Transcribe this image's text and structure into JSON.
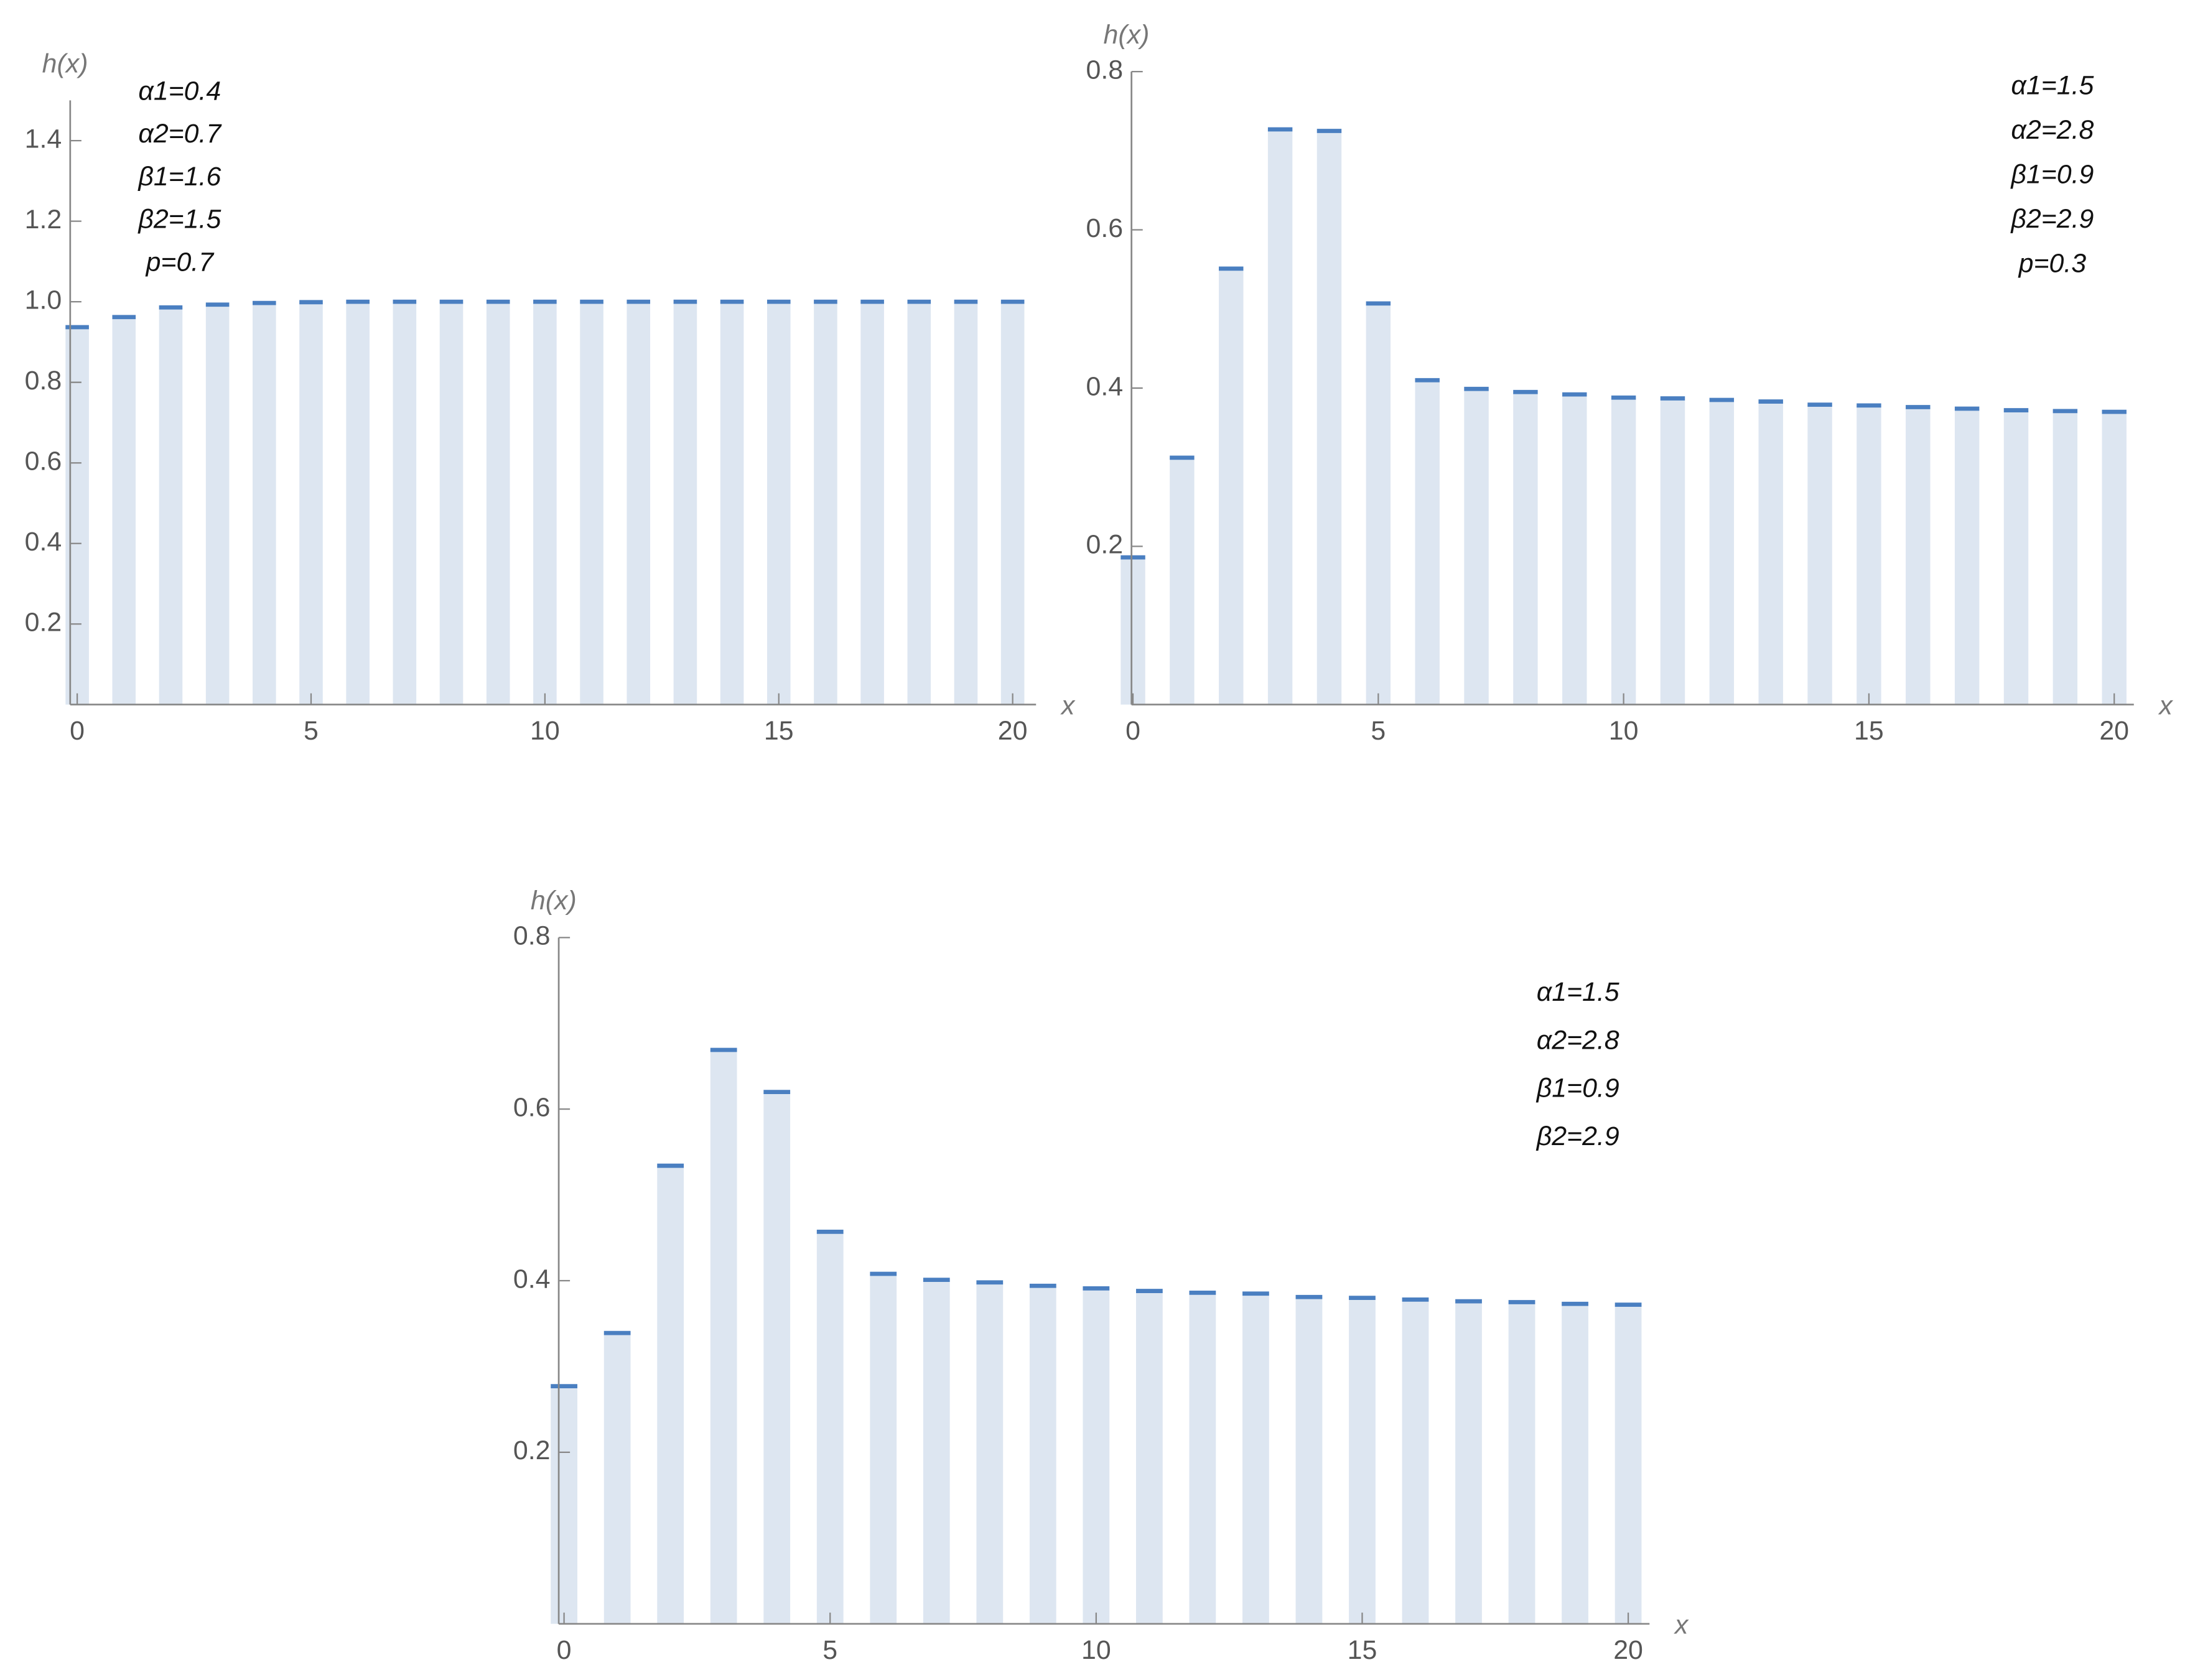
{
  "chart_data": [
    {
      "type": "bar",
      "x_label": "x",
      "y_label": "h(x)",
      "annotations": [
        "α1=0.4",
        "α2=0.7",
        "β1=1.6",
        "β2=1.5",
        "p=0.7"
      ],
      "x": [
        0,
        1,
        2,
        3,
        4,
        5,
        6,
        7,
        8,
        9,
        10,
        11,
        12,
        13,
        14,
        15,
        16,
        17,
        18,
        19,
        20
      ],
      "values": [
        0.937,
        0.962,
        0.986,
        0.993,
        0.997,
        0.999,
        1,
        1,
        1,
        1,
        1,
        1,
        1,
        1,
        1,
        1,
        1,
        1,
        1,
        1,
        1
      ],
      "color": "#4a7fc1",
      "bar_color": "#dde6f1",
      "xlim": [
        -0.15,
        20.5
      ],
      "xticks": [
        0,
        5,
        10,
        15,
        20
      ],
      "ylim": [
        0,
        1.5
      ],
      "yticks": [
        0.2,
        0.4,
        0.6,
        0.8,
        {
          "value": 1,
          "label": "1.0"
        },
        1.2,
        1.4
      ]
    },
    {
      "type": "bar",
      "x_label": "x",
      "y_label": "h(x)",
      "annotations": [
        "α1=1.5",
        "α2=2.8",
        "β1=0.9",
        "β2=2.9",
        "p=0.3"
      ],
      "x": [
        0,
        1,
        2,
        3,
        4,
        5,
        6,
        7,
        8,
        9,
        10,
        11,
        12,
        13,
        14,
        15,
        16,
        17,
        18,
        19,
        20
      ],
      "values": [
        0.186,
        0.312,
        0.551,
        0.727,
        0.725,
        0.507,
        0.41,
        0.399,
        0.395,
        0.392,
        0.388,
        0.387,
        0.385,
        0.383,
        0.379,
        0.378,
        0.376,
        0.374,
        0.372,
        0.371,
        0.37
      ],
      "color": "#4a7fc1",
      "bar_color": "#dde6f1",
      "xlim": [
        -0.03,
        20.4
      ],
      "xticks": [
        0,
        5,
        10,
        15,
        20
      ],
      "ylim": [
        0,
        0.8
      ],
      "yticks": [
        0.2,
        0.4,
        0.6,
        0.8
      ]
    },
    {
      "type": "bar",
      "x_label": "x",
      "y_label": "h(x)",
      "annotations": [
        "α1=1.5",
        "α2=2.8",
        "β1=0.9",
        "β2=2.9"
      ],
      "x": [
        0,
        1,
        2,
        3,
        4,
        5,
        6,
        7,
        8,
        9,
        10,
        11,
        12,
        13,
        14,
        15,
        16,
        17,
        18,
        19,
        20
      ],
      "values": [
        0.277,
        0.339,
        0.534,
        0.669,
        0.62,
        0.457,
        0.408,
        0.401,
        0.398,
        0.394,
        0.391,
        0.388,
        0.386,
        0.385,
        0.381,
        0.38,
        0.378,
        0.376,
        0.375,
        0.373,
        0.372
      ],
      "color": "#4a7fc1",
      "bar_color": "#dde6f1",
      "xlim": [
        -0.1,
        20.4
      ],
      "xticks": [
        0,
        5,
        10,
        15,
        20
      ],
      "ylim": [
        0,
        0.8
      ],
      "yticks": [
        0.2,
        0.4,
        0.6,
        0.8
      ]
    }
  ]
}
